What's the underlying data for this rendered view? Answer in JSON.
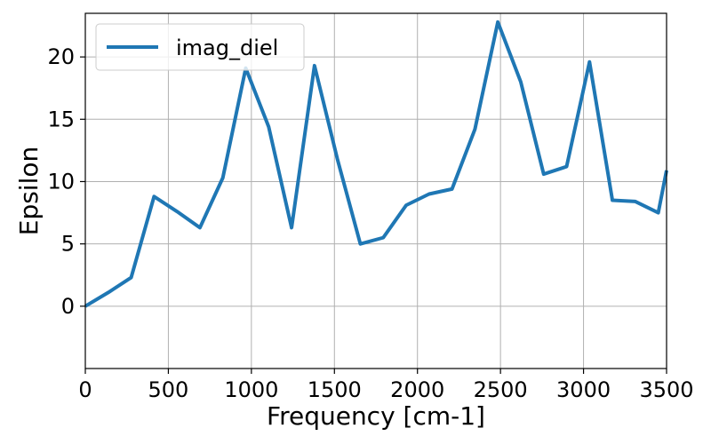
{
  "chart_data": {
    "type": "line",
    "title": "",
    "xlabel": "Frequency [cm-1]",
    "ylabel": "Epsilon",
    "xlim": [
      0,
      3500
    ],
    "ylim": [
      -5,
      23.5
    ],
    "xticks": [
      0,
      500,
      1000,
      1500,
      2000,
      2500,
      3000,
      3500
    ],
    "yticks": [
      0,
      5,
      10,
      15,
      20
    ],
    "grid": true,
    "legend_position": "top-left",
    "series": [
      {
        "name": "imag_diel",
        "color": "#1f77b4",
        "x": [
          0,
          138,
          276,
          414,
          552,
          690,
          828,
          966,
          1104,
          1242,
          1380,
          1518,
          1656,
          1794,
          1932,
          2070,
          2208,
          2346,
          2484,
          2622,
          2760,
          2898,
          3036,
          3174,
          3312,
          3450,
          3500
        ],
        "y": [
          0,
          1.1,
          2.3,
          8.8,
          7.6,
          6.3,
          10.3,
          19.1,
          14.4,
          6.3,
          19.3,
          11.8,
          5.0,
          5.5,
          8.1,
          9.0,
          9.4,
          14.2,
          22.8,
          18.0,
          10.6,
          11.2,
          19.6,
          8.5,
          8.4,
          7.5,
          10.9
        ]
      }
    ]
  }
}
